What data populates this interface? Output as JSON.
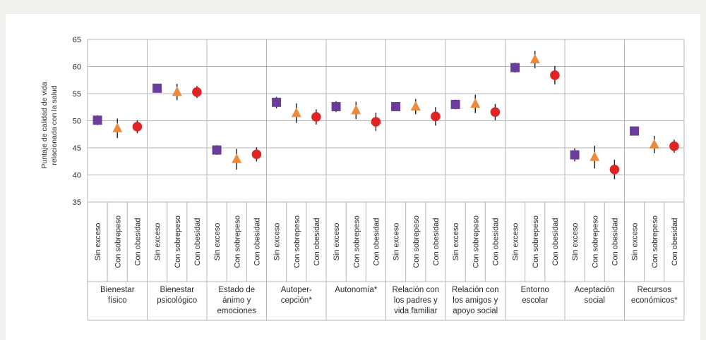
{
  "chart_data": {
    "type": "scatter",
    "title": "",
    "ylabel": [
      "Puntaje de calidad de vida",
      "relacionada con la salud"
    ],
    "ylim": [
      35,
      65
    ],
    "yticks": [
      35,
      40,
      45,
      50,
      55,
      60,
      65
    ],
    "grid": true,
    "legend": "none",
    "group_labels": [
      "Sin exceso",
      "Con sobrepeso",
      "Con obesidad"
    ],
    "categories": [
      [
        "Bienestar",
        "físico"
      ],
      [
        "Bienestar",
        "psicológico"
      ],
      [
        "Estado de",
        "ánimo y",
        "emociones"
      ],
      [
        "Autoper-",
        "cepción*"
      ],
      [
        "Autonomía*"
      ],
      [
        "Relación con",
        "los padres y",
        "vida familiar"
      ],
      [
        "Relación con",
        "los amigos y",
        "apoyo social"
      ],
      [
        "Entorno",
        "escolar"
      ],
      [
        "Aceptación",
        "social"
      ],
      [
        "Recursos",
        "económicos*"
      ]
    ],
    "series": [
      {
        "group": "Sin exceso",
        "marker": "square",
        "color": "#6a3d9a",
        "values": [
          50.1,
          56.0,
          44.6,
          53.4,
          52.6,
          52.6,
          53.0,
          59.8,
          43.7,
          48.1
        ],
        "ci_low": [
          49.2,
          55.3,
          43.7,
          52.3,
          51.6,
          51.8,
          52.1,
          58.9,
          42.5,
          47.3
        ],
        "ci_high": [
          51.0,
          56.7,
          45.5,
          54.4,
          53.6,
          53.4,
          53.9,
          60.7,
          44.9,
          48.9
        ]
      },
      {
        "group": "Con sobrepeso",
        "marker": "triangle",
        "color": "#ee8a3c",
        "values": [
          48.6,
          55.3,
          42.9,
          51.4,
          51.9,
          52.6,
          53.1,
          61.3,
          43.3,
          45.6
        ],
        "ci_low": [
          46.8,
          53.8,
          41.0,
          49.6,
          50.3,
          51.2,
          51.4,
          59.7,
          41.2,
          44.0
        ],
        "ci_high": [
          50.4,
          56.8,
          44.8,
          53.2,
          53.5,
          54.0,
          54.8,
          62.9,
          45.4,
          47.2
        ]
      },
      {
        "group": "Con obesidad",
        "marker": "circle",
        "color": "#e02323",
        "values": [
          48.9,
          55.3,
          43.8,
          50.7,
          49.8,
          50.8,
          51.6,
          58.4,
          41.0,
          45.3
        ],
        "ci_low": [
          47.7,
          54.2,
          42.5,
          49.3,
          48.1,
          49.1,
          50.1,
          56.7,
          39.2,
          44.1
        ],
        "ci_high": [
          50.1,
          56.4,
          45.1,
          52.1,
          51.5,
          52.5,
          53.1,
          60.1,
          42.8,
          46.5
        ]
      }
    ]
  }
}
